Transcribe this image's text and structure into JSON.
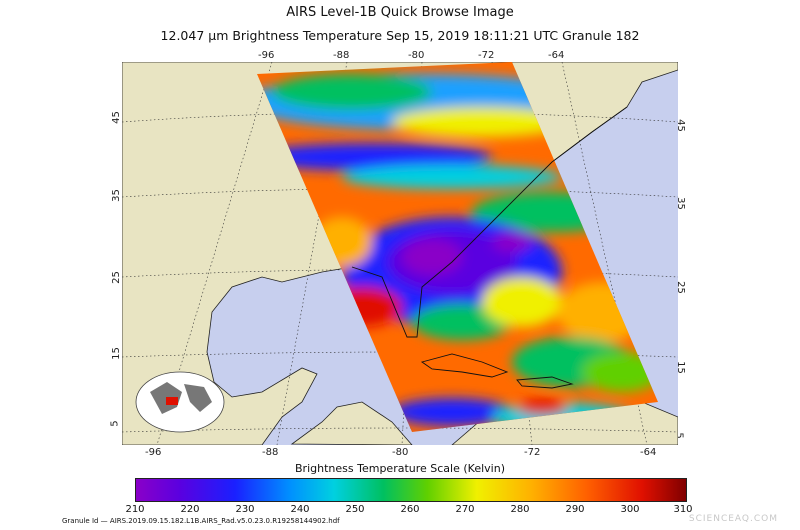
{
  "title_line1": "AIRS Level-1B Quick Browse Image",
  "title_line2": "12.047 µm Brightness Temperature    Sep 15, 2019 18:11:21 UTC   Granule 182",
  "lon_ticks_top": [
    "-96",
    "-88",
    "-80",
    "-72",
    "-64"
  ],
  "lon_ticks_bottom": [
    "-96",
    "-88",
    "-80",
    "-72",
    "-64"
  ],
  "lat_ticks_left": [
    "45",
    "35",
    "25",
    "15",
    "5"
  ],
  "lat_ticks_right": [
    "45",
    "35",
    "25",
    "15",
    "5"
  ],
  "colorbar": {
    "title": "Brightness Temperature Scale (Kelvin)",
    "labels": [
      "210",
      "220",
      "230",
      "240",
      "250",
      "260",
      "270",
      "280",
      "290",
      "300",
      "310"
    ]
  },
  "granule_id": "Granule Id — AIRS.2019.09.15.182.L1B.AIRS_Rad.v5.0.23.0.R19258144902.hdf",
  "credit": "SCIENCEAQ.COM",
  "colors": {
    "ocean": "#c7cfee",
    "land": "#e8e4c2",
    "hot": "#ff6a00",
    "cold": "#6a00c8"
  }
}
